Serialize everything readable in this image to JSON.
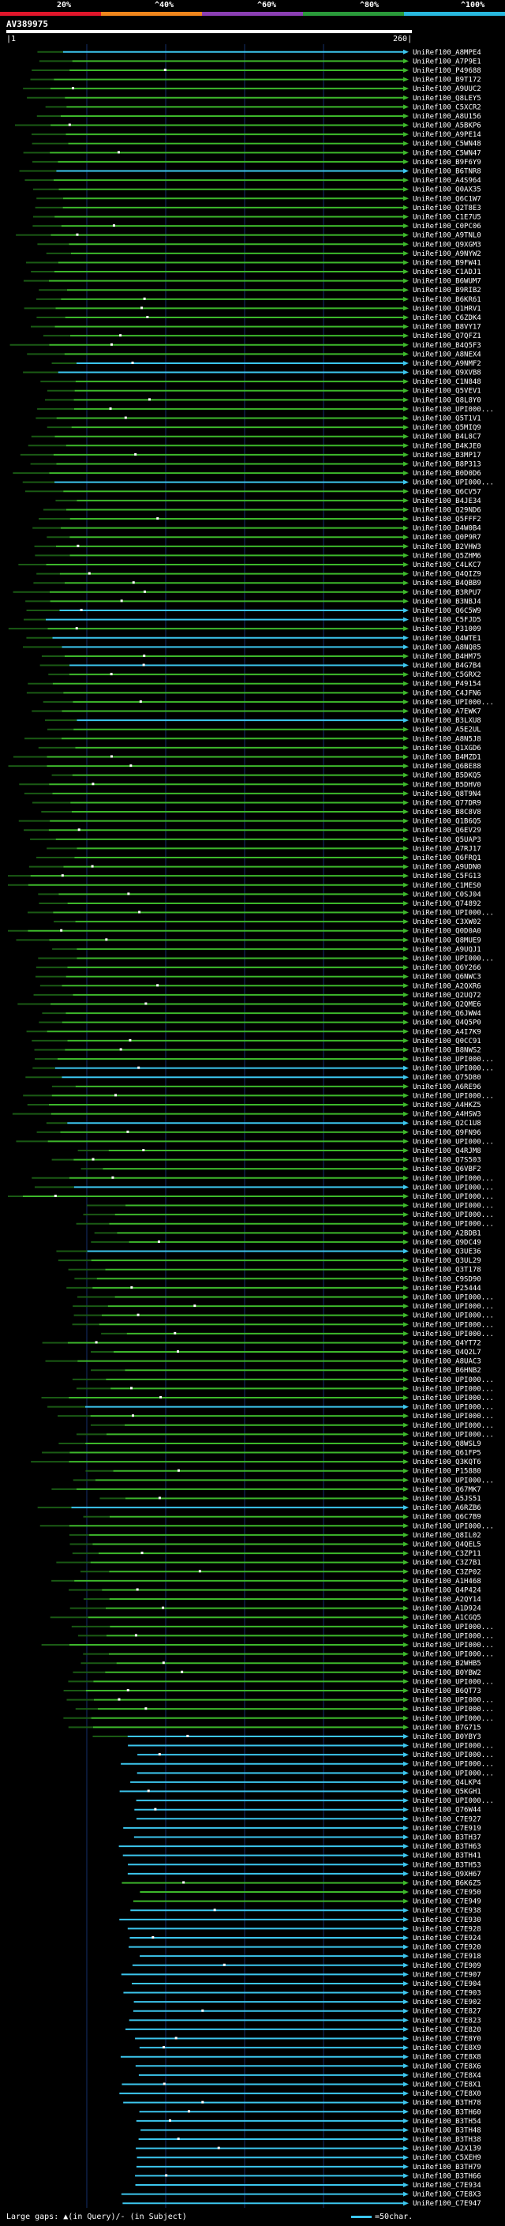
{
  "legend": {
    "labels": [
      "20%",
      "^40%",
      "^60%",
      "^80%",
      "^100%"
    ],
    "colors": [
      "#e0162b",
      "#f0861c",
      "#8b3fb3",
      "#2a9a3a",
      "#28b8de"
    ]
  },
  "query": {
    "id": "AV389975",
    "start": "1",
    "end": "260"
  },
  "colors": {
    "green": "#3db82b",
    "cyan": "#3cc6ee",
    "gap": "#ffffff",
    "grid": "#14306a"
  },
  "hits": [
    "UniRef100_A8MPE4",
    "UniRef100_A7P9E1",
    "UniRef100_P49688",
    "UniRef100_B9T172",
    "UniRef100_A9UUC2",
    "UniRef100_Q8LEY5",
    "UniRef100_C5XCR2",
    "UniRef100_A8U156",
    "UniRef100_A5BKP6",
    "UniRef100_A9PE14",
    "UniRef100_C5WN48",
    "UniRef100_C5WN47",
    "UniRef100_B9F6Y9",
    "UniRef100_B6TNR8",
    "UniRef100_A4S964",
    "UniRef100_Q0AX35",
    "UniRef100_Q6C1W7",
    "UniRef100_Q2T8E3",
    "UniRef100_C1E7U5",
    "UniRef100_C0PC06",
    "UniRef100_A9TNL0",
    "UniRef100_Q9XGM3",
    "UniRef100_A9NYW2",
    "UniRef100_B9FW41",
    "UniRef100_C1ADJ1",
    "UniRef100_B6WUM7",
    "UniRef100_B9RIB2",
    "UniRef100_B6KR61",
    "UniRef100_Q1HRV1",
    "UniRef100_C6ZDK4",
    "UniRef100_B8VY17",
    "UniRef100_Q7QFZ1",
    "UniRef100_B4Q5F3",
    "UniRef100_A8NEX4",
    "UniRef100_A9NMF2",
    "UniRef100_Q9XVB8",
    "UniRef100_C1N848",
    "UniRef100_Q5VEV1",
    "UniRef100_Q8L8Y0",
    "UniRef100_UPI000...",
    "UniRef100_Q5T1V1",
    "UniRef100_Q5MIQ9",
    "UniRef100_B4L8C7",
    "UniRef100_B4KJE0",
    "UniRef100_B3MP17",
    "UniRef100_B8P313",
    "UniRef100_B0D0D6",
    "UniRef100_UPI000...",
    "UniRef100_Q6CV57",
    "UniRef100_B4JE34",
    "UniRef100_Q29ND6",
    "UniRef100_Q5FFF2",
    "UniRef100_D4W0B4",
    "UniRef100_Q0P9R7",
    "UniRef100_B2VHW3",
    "UniRef100_Q5ZHM6",
    "UniRef100_C4LKC7",
    "UniRef100_Q4QIZ9",
    "UniRef100_B4QBB9",
    "UniRef100_B3RPU7",
    "UniRef100_B3NBJ4",
    "UniRef100_Q6C5W9",
    "UniRef100_C5FJD5",
    "UniRef100_P31009",
    "UniRef100_Q4WTE1",
    "UniRef100_A8NQ85",
    "UniRef100_B4HM75",
    "UniRef100_B4G7B4",
    "UniRef100_C5GRX2",
    "UniRef100_P49154",
    "UniRef100_C4JFN6",
    "UniRef100_UPI000...",
    "UniRef100_A7EWK7",
    "UniRef100_B3LXU8",
    "UniRef100_A5E2UL",
    "UniRef100_A8N5J8",
    "UniRef100_Q1XGD6",
    "UniRef100_B4MZD1",
    "UniRef100_Q6BE88",
    "UniRef100_B5DKQ5",
    "UniRef100_B5DHV0",
    "UniRef100_Q8T9N4",
    "UniRef100_Q77DR9",
    "UniRef100_B8C8V8",
    "UniRef100_Q1B6Q5",
    "UniRef100_Q6EV29",
    "UniRef100_Q5UAP3",
    "UniRef100_A7RJ17",
    "UniRef100_Q6FRQ1",
    "UniRef100_A9UDN0",
    "UniRef100_C5FG13",
    "UniRef100_C1MES0",
    "UniRef100_C0SJ04",
    "UniRef100_Q74892",
    "UniRef100_UPI000...",
    "UniRef100_C3XW02",
    "UniRef100_Q0D0A0",
    "UniRef100_Q8MUE9",
    "UniRef100_A9UQJ1",
    "UniRef100_UPI000...",
    "UniRef100_Q6Y266",
    "UniRef100_Q6NWC3",
    "UniRef100_A2QXR6",
    "UniRef100_Q2UQ72",
    "UniRef100_Q2QME6",
    "UniRef100_Q6JWW4",
    "UniRef100_Q4Q5P0",
    "UniRef100_A4I7K9",
    "UniRef100_Q0CC91",
    "UniRef100_B8NWS2",
    "UniRef100_UPI000...",
    "UniRef100_UPI000...",
    "UniRef100_Q75D80",
    "UniRef100_A6RE96",
    "UniRef100_UPI000...",
    "UniRef100_A4HKZ5",
    "UniRef100_A4HSW3",
    "UniRef100_Q2C1U8",
    "UniRef100_Q9FN96",
    "UniRef100_UPI000...",
    "UniRef100_Q4RJM8",
    "UniRef100_Q7S503",
    "UniRef100_Q6VBF2",
    "UniRef100_UPI000...",
    "UniRef100_UPI000...",
    "UniRef100_UPI000...",
    "UniRef100_UPI000...",
    "UniRef100_UPI000...",
    "UniRef100_UPI000...",
    "UniRef100_A2BDB1",
    "UniRef100_Q9DC49",
    "UniRef100_Q3UE36",
    "UniRef100_Q3UL29",
    "UniRef100_Q3T178",
    "UniRef100_C9SD90",
    "UniRef100_P25444",
    "UniRef100_UPI000...",
    "UniRef100_UPI000...",
    "UniRef100_UPI000...",
    "UniRef100_UPI000...",
    "UniRef100_UPI000...",
    "UniRef100_Q4YT72",
    "UniRef100_Q4Q2L7",
    "UniRef100_A8UAC3",
    "UniRef100_B6HNB2",
    "UniRef100_UPI000...",
    "UniRef100_UPI000...",
    "UniRef100_UPI000...",
    "UniRef100_UPI000...",
    "UniRef100_UPI000...",
    "UniRef100_UPI000...",
    "UniRef100_UPI000...",
    "UniRef100_Q8WSL9",
    "UniRef100_Q61FP5",
    "UniRef100_Q3KQT6",
    "UniRef100_P15880",
    "UniRef100_UPI000...",
    "UniRef100_Q67MK7",
    "UniRef100_A5JS51",
    "UniRef100_A6RZB6",
    "UniRef100_Q6C7B9",
    "UniRef100_UPI000...",
    "UniRef100_Q8IL02",
    "UniRef100_Q4QEL5",
    "UniRef100_C3ZP11",
    "UniRef100_C3Z7B1",
    "UniRef100_C3ZP02",
    "UniRef100_A1H468",
    "UniRef100_Q4P424",
    "UniRef100_A2QY14",
    "UniRef100_A1D924",
    "UniRef100_A1CGQ5",
    "UniRef100_UPI000...",
    "UniRef100_UPI000...",
    "UniRef100_UPI000...",
    "UniRef100_UPI000...",
    "UniRef100_B2WHB5",
    "UniRef100_B0YBW2",
    "UniRef100_UPI000...",
    "UniRef100_B6QT73",
    "UniRef100_UPI000...",
    "UniRef100_UPI000...",
    "UniRef100_UPI000...",
    "UniRef100_B7G715",
    "UniRef100_B0YBY3",
    "UniRef100_UPI000...",
    "UniRef100_UPI000...",
    "UniRef100_UPI000...",
    "UniRef100_UPI000...",
    "UniRef100_Q4LKP4",
    "UniRef100_Q5KGH1",
    "UniRef100_UPI000...",
    "UniRef100_Q76W44",
    "UniRef100_C7E927",
    "UniRef100_C7E919",
    "UniRef100_B3TH37",
    "UniRef100_B3TH63",
    "UniRef100_B3TH41",
    "UniRef100_B3TH53",
    "UniRef100_Q9XH67",
    "UniRef100_B6K6Z5",
    "UniRef100_C7E950",
    "UniRef100_C7E949",
    "UniRef100_C7E938",
    "UniRef100_C7E930",
    "UniRef100_C7E928",
    "UniRef100_C7E924",
    "UniRef100_C7E920",
    "UniRef100_C7E918",
    "UniRef100_C7E909",
    "UniRef100_C7E907",
    "UniRef100_C7E904",
    "UniRef100_C7E903",
    "UniRef100_C7E902",
    "UniRef100_C7E827",
    "UniRef100_C7E823",
    "UniRef100_C7E820",
    "UniRef100_C7E8Y0",
    "UniRef100_C7E8X9",
    "UniRef100_C7E8X8",
    "UniRef100_C7E8X6",
    "UniRef100_C7E8X4",
    "UniRef100_C7E8X1",
    "UniRef100_C7E8X0",
    "UniRef100_B3TH78",
    "UniRef100_B3TH60",
    "UniRef100_B3TH54",
    "UniRef100_B3TH48",
    "UniRef100_B3TH38",
    "UniRef100_A2X139",
    "UniRef100_C5XEH9",
    "UniRef100_B3TH79",
    "UniRef100_B3TH66",
    "UniRef100_C7E934",
    "UniRef100_C7E8X3",
    "UniRef100_C7E947"
  ],
  "footer": {
    "large_gaps_label": "Large gaps:",
    "mark": "▲",
    "large_gaps_text": "(in Query)/- (in Subject)",
    "scale_text": "=50char."
  }
}
